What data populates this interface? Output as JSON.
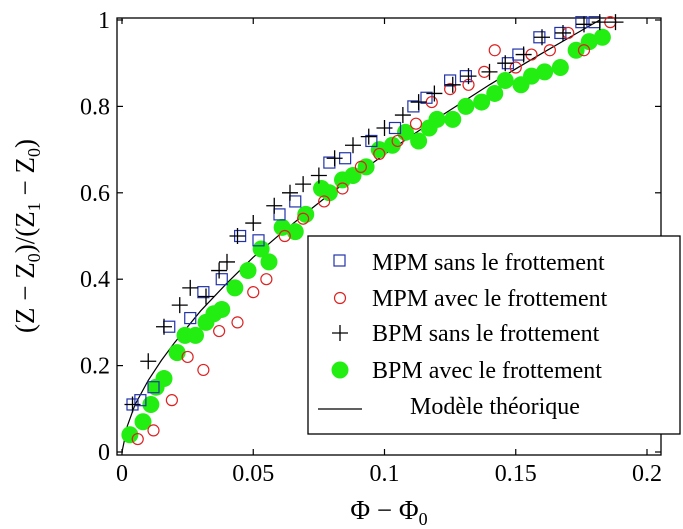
{
  "chart_data": {
    "type": "scatter",
    "title": "",
    "xlabel": "Φ − Φ",
    "xlabel_sub": "0",
    "ylabel_parts": [
      "(Z − Z",
      "0",
      ")/(Z",
      "1",
      " − Z",
      "0",
      ")"
    ],
    "xlim": [
      0,
      0.2
    ],
    "ylim": [
      0,
      1
    ],
    "x_ticks": [
      {
        "v": 0,
        "label": "0"
      },
      {
        "v": 0.05,
        "label": "0.05"
      },
      {
        "v": 0.1,
        "label": "0.1"
      },
      {
        "v": 0.15,
        "label": "0.15"
      },
      {
        "v": 0.2,
        "label": "0.2"
      }
    ],
    "y_ticks": [
      {
        "v": 0,
        "label": "0"
      },
      {
        "v": 0.2,
        "label": "0.2"
      },
      {
        "v": 0.4,
        "label": "0.4"
      },
      {
        "v": 0.6,
        "label": "0.6"
      },
      {
        "v": 0.8,
        "label": "0.8"
      },
      {
        "v": 1,
        "label": "1"
      }
    ],
    "grid": false,
    "legend_position": "bottom-right",
    "series": [
      {
        "name": "MPM sans le frottement",
        "marker": "square-open",
        "color": "#2233aa",
        "points": [
          [
            0.004,
            0.11
          ],
          [
            0.007,
            0.12
          ],
          [
            0.012,
            0.15
          ],
          [
            0.018,
            0.29
          ],
          [
            0.026,
            0.31
          ],
          [
            0.031,
            0.37
          ],
          [
            0.038,
            0.4
          ],
          [
            0.045,
            0.5
          ],
          [
            0.052,
            0.49
          ],
          [
            0.06,
            0.55
          ],
          [
            0.066,
            0.58
          ],
          [
            0.079,
            0.67
          ],
          [
            0.085,
            0.68
          ],
          [
            0.095,
            0.72
          ],
          [
            0.104,
            0.75
          ],
          [
            0.111,
            0.8
          ],
          [
            0.116,
            0.82
          ],
          [
            0.125,
            0.86
          ],
          [
            0.131,
            0.87
          ],
          [
            0.147,
            0.9
          ],
          [
            0.151,
            0.92
          ],
          [
            0.159,
            0.96
          ],
          [
            0.167,
            0.97
          ],
          [
            0.175,
            1.0
          ],
          [
            0.18,
            1.0
          ]
        ]
      },
      {
        "name": "MPM avec le frottement",
        "marker": "circle-open",
        "color": "#dd2222",
        "points": [
          [
            0.006,
            0.03
          ],
          [
            0.012,
            0.05
          ],
          [
            0.019,
            0.12
          ],
          [
            0.025,
            0.22
          ],
          [
            0.031,
            0.19
          ],
          [
            0.037,
            0.28
          ],
          [
            0.044,
            0.3
          ],
          [
            0.05,
            0.37
          ],
          [
            0.055,
            0.4
          ],
          [
            0.062,
            0.5
          ],
          [
            0.069,
            0.54
          ],
          [
            0.077,
            0.58
          ],
          [
            0.084,
            0.61
          ],
          [
            0.091,
            0.66
          ],
          [
            0.098,
            0.69
          ],
          [
            0.105,
            0.72
          ],
          [
            0.112,
            0.76
          ],
          [
            0.118,
            0.81
          ],
          [
            0.125,
            0.84
          ],
          [
            0.132,
            0.85
          ],
          [
            0.138,
            0.88
          ],
          [
            0.142,
            0.93
          ],
          [
            0.15,
            0.89
          ],
          [
            0.156,
            0.92
          ],
          [
            0.163,
            0.93
          ],
          [
            0.17,
            0.97
          ],
          [
            0.176,
            0.93
          ],
          [
            0.186,
            1.0
          ]
        ]
      },
      {
        "name": "BPM sans le frottement",
        "marker": "plus",
        "color": "#000000",
        "points": [
          [
            0.004,
            0.11
          ],
          [
            0.01,
            0.21
          ],
          [
            0.016,
            0.29
          ],
          [
            0.022,
            0.34
          ],
          [
            0.026,
            0.38
          ],
          [
            0.032,
            0.36
          ],
          [
            0.037,
            0.42
          ],
          [
            0.04,
            0.44
          ],
          [
            0.044,
            0.5
          ],
          [
            0.05,
            0.53
          ],
          [
            0.058,
            0.57
          ],
          [
            0.064,
            0.6
          ],
          [
            0.069,
            0.62
          ],
          [
            0.075,
            0.64
          ],
          [
            0.081,
            0.68
          ],
          [
            0.088,
            0.71
          ],
          [
            0.094,
            0.73
          ],
          [
            0.1,
            0.75
          ],
          [
            0.107,
            0.78
          ],
          [
            0.113,
            0.81
          ],
          [
            0.119,
            0.83
          ],
          [
            0.126,
            0.85
          ],
          [
            0.132,
            0.87
          ],
          [
            0.14,
            0.88
          ],
          [
            0.146,
            0.9
          ],
          [
            0.153,
            0.92
          ],
          [
            0.16,
            0.96
          ],
          [
            0.168,
            0.97
          ],
          [
            0.176,
            0.99
          ],
          [
            0.182,
            1.0
          ],
          [
            0.188,
            1.0
          ]
        ]
      },
      {
        "name": "BPM avec le frottement",
        "marker": "circle-filled",
        "color": "#22ee11",
        "points": [
          [
            0.003,
            0.04
          ],
          [
            0.008,
            0.07
          ],
          [
            0.011,
            0.11
          ],
          [
            0.013,
            0.15
          ],
          [
            0.016,
            0.17
          ],
          [
            0.021,
            0.23
          ],
          [
            0.024,
            0.27
          ],
          [
            0.028,
            0.27
          ],
          [
            0.032,
            0.3
          ],
          [
            0.035,
            0.32
          ],
          [
            0.038,
            0.33
          ],
          [
            0.043,
            0.38
          ],
          [
            0.048,
            0.42
          ],
          [
            0.053,
            0.47
          ],
          [
            0.056,
            0.44
          ],
          [
            0.061,
            0.52
          ],
          [
            0.066,
            0.51
          ],
          [
            0.07,
            0.55
          ],
          [
            0.076,
            0.61
          ],
          [
            0.079,
            0.6
          ],
          [
            0.084,
            0.63
          ],
          [
            0.088,
            0.64
          ],
          [
            0.093,
            0.66
          ],
          [
            0.098,
            0.7
          ],
          [
            0.103,
            0.71
          ],
          [
            0.108,
            0.74
          ],
          [
            0.113,
            0.72
          ],
          [
            0.117,
            0.75
          ],
          [
            0.12,
            0.77
          ],
          [
            0.126,
            0.77
          ],
          [
            0.131,
            0.8
          ],
          [
            0.137,
            0.81
          ],
          [
            0.142,
            0.83
          ],
          [
            0.146,
            0.86
          ],
          [
            0.152,
            0.85
          ],
          [
            0.156,
            0.87
          ],
          [
            0.161,
            0.88
          ],
          [
            0.167,
            0.89
          ],
          [
            0.173,
            0.93
          ],
          [
            0.178,
            0.95
          ],
          [
            0.183,
            0.96
          ]
        ]
      },
      {
        "name": "Modèle théorique",
        "marker": "line",
        "color": "#000000",
        "curve": "y = (x / 0.182)^0.62",
        "points": [
          [
            0,
            0
          ],
          [
            0.002,
            0.06
          ],
          [
            0.005,
            0.11
          ],
          [
            0.01,
            0.166
          ],
          [
            0.015,
            0.212
          ],
          [
            0.02,
            0.253
          ],
          [
            0.03,
            0.327
          ],
          [
            0.04,
            0.391
          ],
          [
            0.05,
            0.451
          ],
          [
            0.06,
            0.503
          ],
          [
            0.07,
            0.553
          ],
          [
            0.08,
            0.601
          ],
          [
            0.09,
            0.645
          ],
          [
            0.1,
            0.689
          ],
          [
            0.11,
            0.731
          ],
          [
            0.12,
            0.772
          ],
          [
            0.13,
            0.811
          ],
          [
            0.14,
            0.85
          ],
          [
            0.15,
            0.887
          ],
          [
            0.16,
            0.923
          ],
          [
            0.17,
            0.958
          ],
          [
            0.18,
            0.993
          ],
          [
            0.182,
            1.0
          ]
        ]
      }
    ]
  }
}
